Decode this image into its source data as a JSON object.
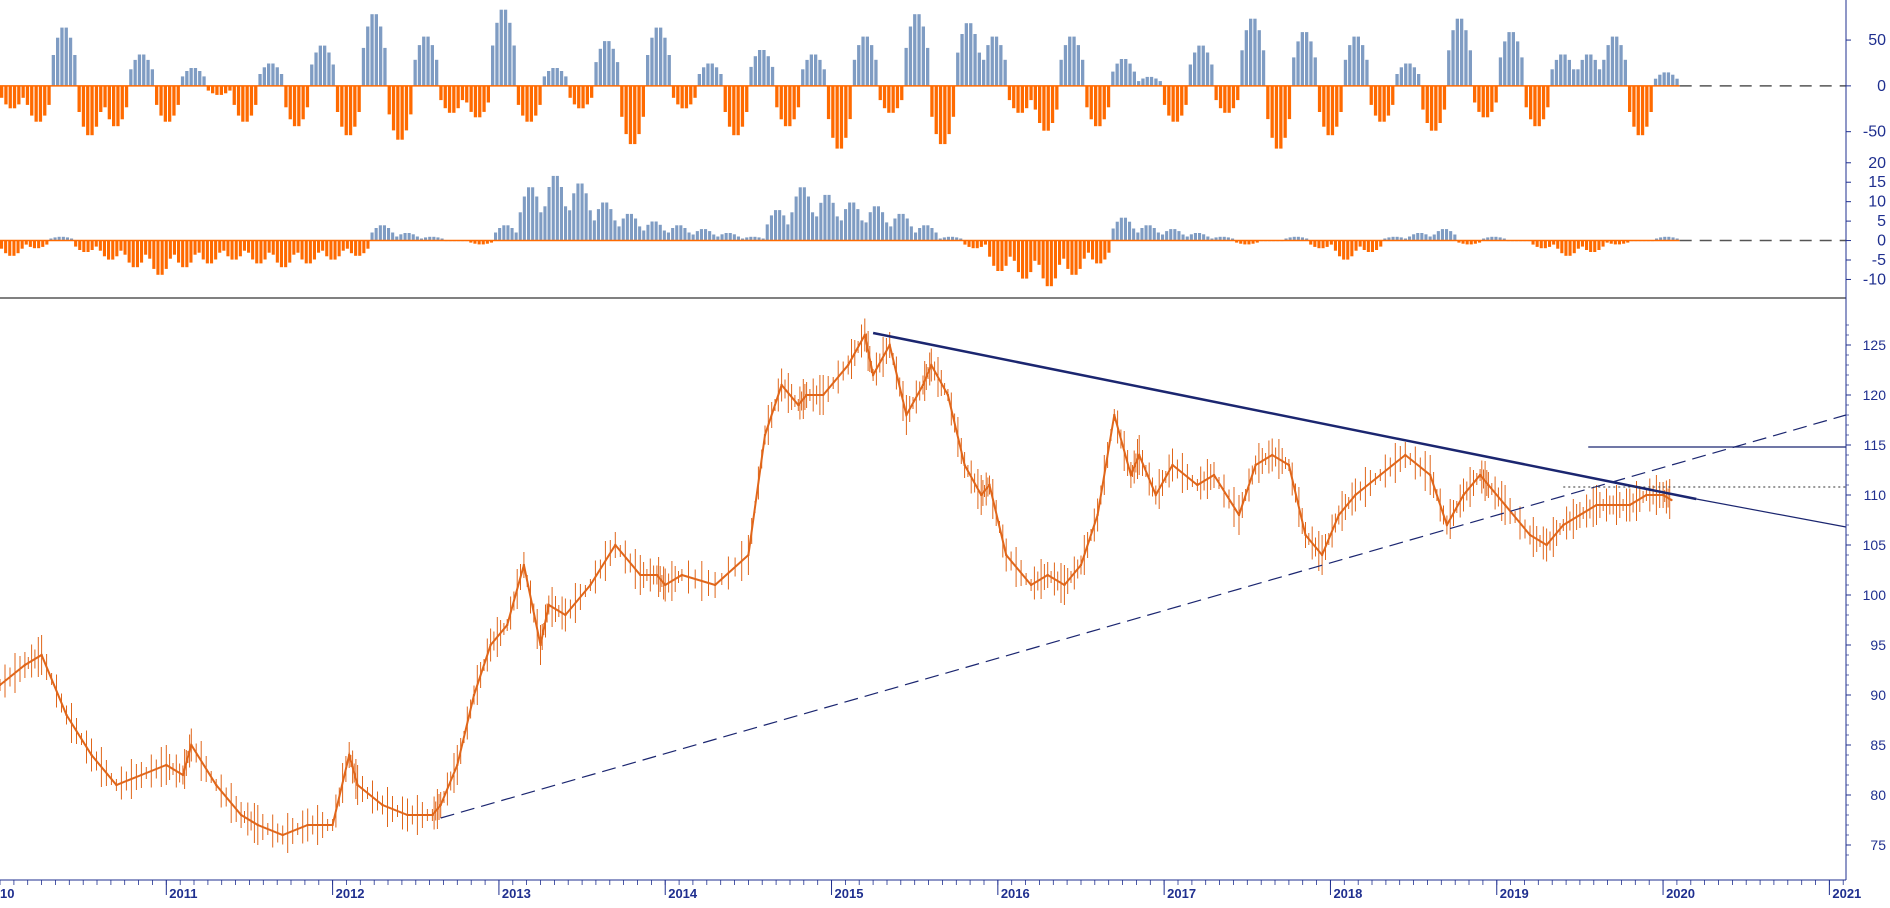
{
  "colors": {
    "up": "#7f9cc3",
    "down": "#ff6a00",
    "price": "#e0661a",
    "axis": "#1f2f8f",
    "trend": "#1b2670",
    "ref": "#555555"
  },
  "chart_data": [
    {
      "type": "bar",
      "name": "oscillator-top",
      "y_ticks": [
        "50",
        "0",
        "-50"
      ],
      "y_tick_values": [
        50,
        0,
        -50
      ],
      "ylim": [
        -70,
        85
      ],
      "reference_line": 0,
      "x_range": [
        2010.0,
        2020.1
      ],
      "values": [
        -25,
        -40,
        65,
        -55,
        -45,
        35,
        -40,
        20,
        -10,
        -40,
        25,
        -45,
        45,
        -55,
        80,
        -60,
        55,
        -30,
        -35,
        85,
        -40,
        20,
        -25,
        50,
        -65,
        65,
        -25,
        25,
        -55,
        40,
        -45,
        35,
        -70,
        55,
        -30,
        80,
        -65,
        70,
        55,
        -30,
        -50,
        55,
        -45,
        30,
        10,
        -40,
        45,
        -30,
        75,
        -70,
        60,
        -55,
        55,
        -40,
        25,
        -50,
        75,
        -35,
        60,
        -45,
        35,
        35,
        55,
        -55,
        15
      ]
    },
    {
      "type": "bar",
      "name": "oscillator-middle",
      "y_ticks": [
        "20",
        "15",
        "10",
        "5",
        "0",
        "-5",
        "-10"
      ],
      "y_tick_values": [
        20,
        15,
        10,
        5,
        0,
        -5,
        -10
      ],
      "ylim": [
        -14,
        22
      ],
      "reference_line": 0,
      "x_range": [
        2010.0,
        2020.1
      ],
      "values": [
        -4,
        -2,
        1,
        -3,
        -5,
        -7,
        -9,
        -7,
        -6,
        -5,
        -6,
        -7,
        -6,
        -5,
        -4,
        4,
        2,
        1,
        0,
        -1,
        4,
        14,
        17,
        15,
        10,
        7,
        5,
        4,
        3,
        2,
        1,
        8,
        14,
        12,
        10,
        9,
        7,
        4,
        1,
        -2,
        -8,
        -10,
        -12,
        -9,
        -6,
        6,
        4,
        3,
        2,
        1,
        -1,
        0,
        1,
        -2,
        -5,
        -3,
        1,
        2,
        3,
        -1,
        1,
        0,
        -2,
        -4,
        -3,
        -1,
        0,
        1
      ]
    },
    {
      "type": "line",
      "name": "price",
      "x_ticks": [
        "2011",
        "2012",
        "2013",
        "2014",
        "2015",
        "2016",
        "2017",
        "2018",
        "2019",
        "2020",
        "2021"
      ],
      "x_tick_values": [
        2011,
        2012,
        2013,
        2014,
        2015,
        2016,
        2017,
        2018,
        2019,
        2020,
        2021
      ],
      "x_edge_label": "10",
      "y_ticks": [
        "125",
        "120",
        "115",
        "110",
        "105",
        "100",
        "95",
        "90",
        "85",
        "80",
        "75"
      ],
      "y_tick_values": [
        125,
        120,
        115,
        110,
        105,
        100,
        95,
        90,
        85,
        80,
        75
      ],
      "ylim": [
        72,
        129
      ],
      "x": [
        2010.0,
        2010.15,
        2010.25,
        2010.4,
        2010.55,
        2010.7,
        2010.85,
        2011.0,
        2011.1,
        2011.15,
        2011.3,
        2011.45,
        2011.55,
        2011.7,
        2011.85,
        2012.0,
        2012.1,
        2012.15,
        2012.3,
        2012.45,
        2012.6,
        2012.65,
        2012.75,
        2012.85,
        2012.95,
        2013.05,
        2013.15,
        2013.25,
        2013.3,
        2013.4,
        2013.55,
        2013.7,
        2013.85,
        2013.95,
        2014.0,
        2014.1,
        2014.3,
        2014.5,
        2014.6,
        2014.7,
        2014.8,
        2014.85,
        2014.95,
        2015.1,
        2015.2,
        2015.25,
        2015.35,
        2015.45,
        2015.55,
        2015.6,
        2015.7,
        2015.8,
        2015.9,
        2015.95,
        2016.05,
        2016.2,
        2016.3,
        2016.4,
        2016.5,
        2016.6,
        2016.7,
        2016.8,
        2016.85,
        2016.95,
        2017.05,
        2017.2,
        2017.3,
        2017.45,
        2017.55,
        2017.65,
        2017.75,
        2017.85,
        2017.95,
        2018.05,
        2018.15,
        2018.3,
        2018.45,
        2018.6,
        2018.7,
        2018.8,
        2018.9,
        2018.95,
        2019.05,
        2019.2,
        2019.3,
        2019.4,
        2019.5,
        2019.6,
        2019.7,
        2019.8,
        2019.9,
        2020.0,
        2020.05
      ],
      "y": [
        91,
        93,
        94,
        88,
        84,
        81,
        82,
        83,
        82,
        85,
        81,
        78,
        77,
        76,
        77,
        77,
        84,
        81,
        79,
        78,
        78,
        79,
        83,
        90,
        95,
        97,
        103,
        95,
        99,
        98,
        101,
        105,
        102,
        102,
        101,
        102,
        101,
        104,
        116,
        121,
        119,
        120,
        120,
        123,
        126,
        122,
        125,
        118,
        121,
        123,
        120,
        113,
        110,
        111,
        104,
        101,
        102,
        101,
        103,
        108,
        118,
        112,
        114,
        110,
        113,
        111,
        112,
        108,
        113,
        114,
        113,
        106,
        104,
        108,
        110,
        112,
        114,
        112,
        107,
        110,
        112,
        111,
        109,
        106,
        105,
        107,
        108,
        109,
        109,
        109,
        110,
        110,
        109.5
      ],
      "trendlines": [
        {
          "style": "solid-thick",
          "from": [
            2015.25,
            126.2
          ],
          "to": [
            2020.2,
            109.6
          ]
        },
        {
          "style": "solid-thin",
          "from": [
            2020.2,
            109.6
          ],
          "to": [
            2021.1,
            106.8
          ]
        },
        {
          "style": "dashed",
          "from": [
            2012.65,
            77.7
          ],
          "to": [
            2021.1,
            118
          ]
        },
        {
          "style": "horizontal",
          "from": [
            2019.55,
            114.8
          ],
          "to": [
            2021.1,
            114.8
          ]
        },
        {
          "style": "dotted",
          "from": [
            2019.4,
            110.8
          ],
          "to": [
            2021.1,
            110.8
          ]
        }
      ]
    }
  ]
}
